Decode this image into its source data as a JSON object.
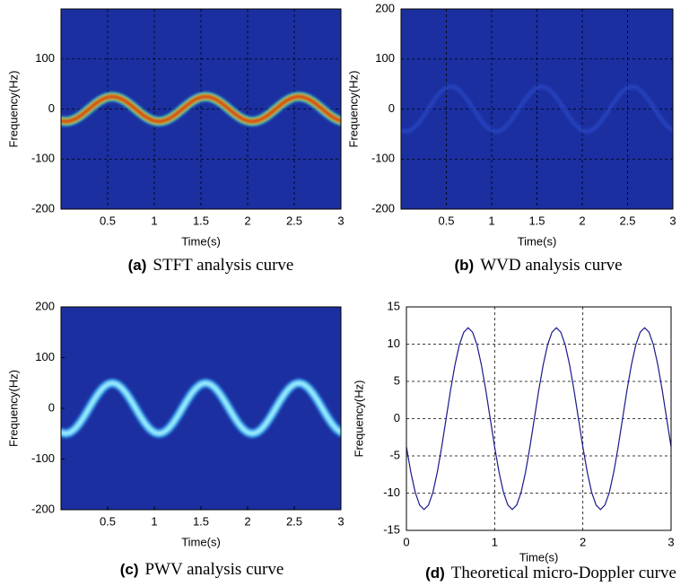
{
  "chart_data": [
    {
      "type": "spectrogram",
      "label": "(a)",
      "caption": "STFT analysis curve",
      "xlabel": "Time(s)",
      "ylabel": "Frequency(Hz)",
      "xlim": [
        0,
        3
      ],
      "ylim": [
        -200,
        200
      ],
      "xticks": [
        0.5,
        1,
        1.5,
        2,
        2.5,
        3
      ],
      "yticks": [
        -200,
        -100,
        0,
        100
      ],
      "grid": true,
      "background": "#1b2fa0",
      "ridge_colors": [
        "#27c8f0",
        "#f2e61e",
        "#c80a0a"
      ],
      "x": [
        0,
        0.05,
        0.1,
        0.15,
        0.2,
        0.25,
        0.3,
        0.35,
        0.4,
        0.45,
        0.5,
        0.55,
        0.6,
        0.65,
        0.7,
        0.75,
        0.8,
        0.85,
        0.9,
        0.95,
        1,
        1.05,
        1.1,
        1.15,
        1.2,
        1.25,
        1.3,
        1.35,
        1.4,
        1.45,
        1.5,
        1.55,
        1.6,
        1.65,
        1.7,
        1.75,
        1.8,
        1.85,
        1.9,
        1.95,
        2,
        2.05,
        2.1,
        2.15,
        2.2,
        2.25,
        2.3,
        2.35,
        2.4,
        2.45,
        2.5,
        2.55,
        2.6,
        2.65,
        2.7,
        2.75,
        2.8,
        2.85,
        2.9,
        2.95,
        3
      ],
      "values": [
        -23.8,
        -25,
        -23.8,
        -20.2,
        -14.7,
        -7.7,
        0,
        7.7,
        14.7,
        20.2,
        23.8,
        25,
        23.8,
        20.2,
        14.7,
        7.7,
        0,
        -7.7,
        -14.7,
        -20.2,
        -23.8,
        -25,
        -23.8,
        -20.2,
        -14.7,
        -7.7,
        0,
        7.7,
        14.7,
        20.2,
        23.8,
        25,
        23.8,
        20.2,
        14.7,
        7.7,
        0,
        -7.7,
        -14.7,
        -20.2,
        -23.8,
        -25,
        -23.8,
        -20.2,
        -14.7,
        -7.7,
        0,
        7.7,
        14.7,
        20.2,
        23.8,
        25,
        23.8,
        20.2,
        14.7,
        7.7,
        0,
        -7.7,
        -14.7,
        -20.2,
        -23.8
      ]
    },
    {
      "type": "spectrogram",
      "label": "(b)",
      "caption": "WVD analysis curve",
      "xlabel": "Time(s)",
      "ylabel": "Frequency(Hz)",
      "xlim": [
        0,
        3
      ],
      "ylim": [
        -200,
        200
      ],
      "xticks": [
        0.5,
        1,
        1.5,
        2,
        2.5,
        3
      ],
      "yticks": [
        -200,
        -100,
        0,
        100,
        200
      ],
      "grid": true,
      "background": "#1b2fa0",
      "ridge_colors": [
        "#2a48c8"
      ],
      "x": [
        0,
        0.05,
        0.1,
        0.15,
        0.2,
        0.25,
        0.3,
        0.35,
        0.4,
        0.45,
        0.5,
        0.55,
        0.6,
        0.65,
        0.7,
        0.75,
        0.8,
        0.85,
        0.9,
        0.95,
        1,
        1.05,
        1.1,
        1.15,
        1.2,
        1.25,
        1.3,
        1.35,
        1.4,
        1.45,
        1.5,
        1.55,
        1.6,
        1.65,
        1.7,
        1.75,
        1.8,
        1.85,
        1.9,
        1.95,
        2,
        2.05,
        2.1,
        2.15,
        2.2,
        2.25,
        2.3,
        2.35,
        2.4,
        2.45,
        2.5,
        2.55,
        2.6,
        2.65,
        2.7,
        2.75,
        2.8,
        2.85,
        2.9,
        2.95,
        3
      ],
      "values": [
        -42.8,
        -45,
        -42.8,
        -36.4,
        -26.5,
        -13.9,
        0,
        13.9,
        26.5,
        36.4,
        42.8,
        45,
        42.8,
        36.4,
        26.5,
        13.9,
        0,
        -13.9,
        -26.5,
        -36.4,
        -42.8,
        -45,
        -42.8,
        -36.4,
        -26.5,
        -13.9,
        0,
        13.9,
        26.5,
        36.4,
        42.8,
        45,
        42.8,
        36.4,
        26.5,
        13.9,
        0,
        -13.9,
        -26.5,
        -36.4,
        -42.8,
        -45,
        -42.8,
        -36.4,
        -26.5,
        -13.9,
        0,
        13.9,
        26.5,
        36.4,
        42.8,
        45,
        42.8,
        36.4,
        26.5,
        13.9,
        0,
        -13.9,
        -26.5,
        -36.4,
        -42.8
      ]
    },
    {
      "type": "spectrogram",
      "label": "(c)",
      "caption": "PWV analysis curve",
      "xlabel": "Time(s)",
      "ylabel": "Frequency(Hz)",
      "xlim": [
        0,
        3
      ],
      "ylim": [
        -200,
        200
      ],
      "xticks": [
        0.5,
        1,
        1.5,
        2,
        2.5,
        3
      ],
      "yticks": [
        -200,
        -100,
        0,
        100,
        200
      ],
      "grid": false,
      "background": "#1b2fa0",
      "ridge_colors": [
        "#2f80e0",
        "#50c8f4",
        "#b8f4ff"
      ],
      "x": [
        0,
        0.05,
        0.1,
        0.15,
        0.2,
        0.25,
        0.3,
        0.35,
        0.4,
        0.45,
        0.5,
        0.55,
        0.6,
        0.65,
        0.7,
        0.75,
        0.8,
        0.85,
        0.9,
        0.95,
        1,
        1.05,
        1.1,
        1.15,
        1.2,
        1.25,
        1.3,
        1.35,
        1.4,
        1.45,
        1.5,
        1.55,
        1.6,
        1.65,
        1.7,
        1.75,
        1.8,
        1.85,
        1.9,
        1.95,
        2,
        2.05,
        2.1,
        2.15,
        2.2,
        2.25,
        2.3,
        2.35,
        2.4,
        2.45,
        2.5,
        2.55,
        2.6,
        2.65,
        2.7,
        2.75,
        2.8,
        2.85,
        2.9,
        2.95,
        3
      ],
      "values": [
        -47.6,
        -50,
        -47.6,
        -40.5,
        -29.4,
        -15.5,
        0,
        15.5,
        29.4,
        40.5,
        47.6,
        50,
        47.6,
        40.5,
        29.4,
        15.5,
        0,
        -15.5,
        -29.4,
        -40.5,
        -47.6,
        -50,
        -47.6,
        -40.5,
        -29.4,
        -15.5,
        0,
        15.5,
        29.4,
        40.5,
        47.6,
        50,
        47.6,
        40.5,
        29.4,
        15.5,
        0,
        -15.5,
        -29.4,
        -40.5,
        -47.6,
        -50,
        -47.6,
        -40.5,
        -29.4,
        -15.5,
        0,
        15.5,
        29.4,
        40.5,
        47.6,
        50,
        47.6,
        40.5,
        29.4,
        15.5,
        0,
        -15.5,
        -29.4,
        -40.5,
        -47.6
      ]
    },
    {
      "type": "line",
      "label": "(d)",
      "caption": "Theoretical micro-Doppler curve",
      "xlabel": "Time(s)",
      "ylabel": "Frequency(Hz)",
      "xlim": [
        0,
        3
      ],
      "ylim": [
        -15,
        15
      ],
      "xticks": [
        0,
        1,
        2,
        3
      ],
      "yticks": [
        -15,
        -10,
        -5,
        0,
        5,
        10,
        15
      ],
      "grid": true,
      "color": "#1a1a8c",
      "x": [
        0,
        0.05,
        0.1,
        0.15,
        0.2,
        0.25,
        0.3,
        0.35,
        0.4,
        0.45,
        0.5,
        0.55,
        0.6,
        0.65,
        0.7,
        0.75,
        0.8,
        0.85,
        0.9,
        0.95,
        1,
        1.05,
        1.1,
        1.15,
        1.2,
        1.25,
        1.3,
        1.35,
        1.4,
        1.45,
        1.5,
        1.55,
        1.6,
        1.65,
        1.7,
        1.75,
        1.8,
        1.85,
        1.9,
        1.95,
        2,
        2.05,
        2.1,
        2.15,
        2.2,
        2.25,
        2.3,
        2.35,
        2.4,
        2.45,
        2.5,
        2.55,
        2.6,
        2.65,
        2.7,
        2.75,
        2.8,
        2.85,
        2.9,
        2.95,
        3
      ],
      "values": [
        -3.8,
        -7.2,
        -9.9,
        -11.6,
        -12.2,
        -11.6,
        -9.9,
        -7.2,
        -3.8,
        0,
        3.8,
        7.2,
        9.9,
        11.6,
        12.2,
        11.6,
        9.9,
        7.2,
        3.8,
        0,
        -3.8,
        -7.2,
        -9.9,
        -11.6,
        -12.2,
        -11.6,
        -9.9,
        -7.2,
        -3.8,
        0,
        3.8,
        7.2,
        9.9,
        11.6,
        12.2,
        11.6,
        9.9,
        7.2,
        3.8,
        0,
        -3.8,
        -7.2,
        -9.9,
        -11.6,
        -12.2,
        -11.6,
        -9.9,
        -7.2,
        -3.8,
        0,
        3.8,
        7.2,
        9.9,
        11.6,
        12.2,
        11.6,
        9.9,
        7.2,
        3.8,
        0,
        -3.8
      ]
    }
  ]
}
